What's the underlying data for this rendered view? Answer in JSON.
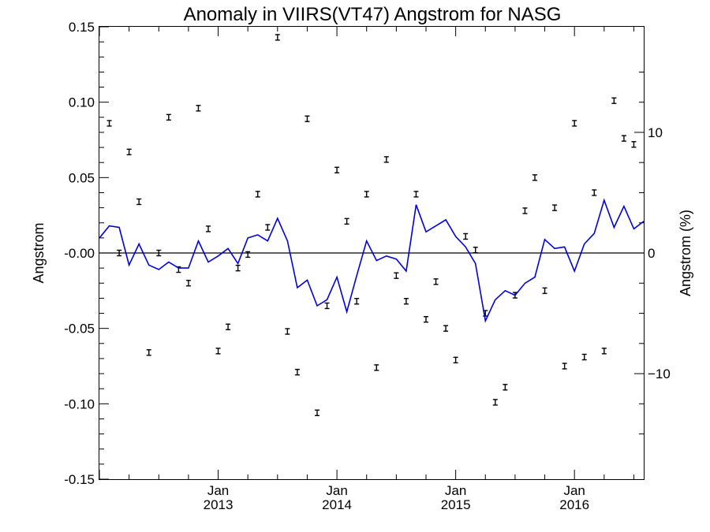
{
  "chart_data": {
    "type": "scatter",
    "title": "Anomaly in VIIRS(VT47) Angstrom for NASG",
    "ylabel": "Angstrom",
    "y2label": "Angstrom (%)",
    "ylim": [
      -0.15,
      0.15
    ],
    "y2lim": [
      -18.75,
      18.75
    ],
    "xlim": [
      "2012-01",
      "2016-08"
    ],
    "y_ticks": [
      "0.15",
      "0.10",
      "0.05",
      "-0.00",
      "-0.05",
      "-0.10",
      "-0.15"
    ],
    "y2_ticks": [
      "10",
      "0",
      "−10"
    ],
    "x_ticks": [
      {
        "month": "Jan",
        "year": "2013",
        "x": "2013-01"
      },
      {
        "month": "Jan",
        "year": "2014",
        "x": "2014-01"
      },
      {
        "month": "Jan",
        "year": "2015",
        "x": "2015-01"
      },
      {
        "month": "Jan",
        "year": "2016",
        "x": "2016-01"
      }
    ],
    "zero_line": true,
    "series": [
      {
        "kind": "errorbar-markers",
        "color": "#000000",
        "x": [
          "2012-02",
          "2012-03",
          "2012-04",
          "2012-05",
          "2012-06",
          "2012-07",
          "2012-08",
          "2012-09",
          "2012-10",
          "2012-11",
          "2012-12",
          "2013-01",
          "2013-02",
          "2013-03",
          "2013-04",
          "2013-05",
          "2013-06",
          "2013-07",
          "2013-08",
          "2013-09",
          "2013-10",
          "2013-11",
          "2013-12",
          "2014-01",
          "2014-02",
          "2014-03",
          "2014-04",
          "2014-05",
          "2014-06",
          "2014-07",
          "2014-08",
          "2014-09",
          "2014-10",
          "2014-11",
          "2014-12",
          "2015-01",
          "2015-02",
          "2015-03",
          "2015-04",
          "2015-05",
          "2015-06",
          "2015-07",
          "2015-08",
          "2015-09",
          "2015-10",
          "2015-11",
          "2015-12",
          "2016-01",
          "2016-02",
          "2016-03",
          "2016-04",
          "2016-05",
          "2016-06",
          "2016-07"
        ],
        "y": [
          0.086,
          0.0,
          0.067,
          0.034,
          -0.066,
          0.0,
          0.09,
          -0.011,
          -0.02,
          0.096,
          0.016,
          -0.065,
          -0.049,
          -0.01,
          -0.001,
          0.039,
          0.017,
          0.143,
          -0.052,
          -0.079,
          0.089,
          -0.106,
          -0.035,
          0.055,
          0.021,
          -0.032,
          0.039,
          -0.076,
          0.062,
          -0.015,
          -0.032,
          0.039,
          -0.044,
          -0.019,
          -0.05,
          -0.071,
          0.011,
          0.002,
          -0.04,
          -0.099,
          -0.089,
          -0.028,
          0.028,
          0.05,
          -0.025,
          0.03,
          -0.075,
          0.086,
          -0.069,
          0.04,
          -0.065,
          0.101,
          0.076,
          0.072
        ]
      },
      {
        "kind": "line",
        "color": "#0000dd",
        "x": [
          "2012-01",
          "2012-02",
          "2012-03",
          "2012-04",
          "2012-05",
          "2012-06",
          "2012-07",
          "2012-08",
          "2012-09",
          "2012-10",
          "2012-11",
          "2012-12",
          "2013-01",
          "2013-02",
          "2013-03",
          "2013-04",
          "2013-05",
          "2013-06",
          "2013-07",
          "2013-08",
          "2013-09",
          "2013-10",
          "2013-11",
          "2013-12",
          "2014-01",
          "2014-02",
          "2014-03",
          "2014-04",
          "2014-05",
          "2014-06",
          "2014-07",
          "2014-08",
          "2014-09",
          "2014-10",
          "2014-11",
          "2014-12",
          "2015-01",
          "2015-02",
          "2015-03",
          "2015-04",
          "2015-05",
          "2015-06",
          "2015-07",
          "2015-08",
          "2015-09",
          "2015-10",
          "2015-11",
          "2015-12",
          "2016-01",
          "2016-02",
          "2016-03",
          "2016-04",
          "2016-05",
          "2016-06",
          "2016-07",
          "2016-08"
        ],
        "y": [
          0.01,
          0.018,
          0.017,
          -0.008,
          0.006,
          -0.008,
          -0.011,
          -0.006,
          -0.01,
          -0.01,
          0.008,
          -0.006,
          -0.002,
          0.003,
          -0.007,
          0.01,
          0.012,
          0.008,
          0.023,
          0.008,
          -0.023,
          -0.018,
          -0.035,
          -0.031,
          -0.016,
          -0.039,
          -0.015,
          0.008,
          -0.005,
          -0.002,
          -0.004,
          -0.012,
          0.032,
          0.014,
          0.018,
          0.022,
          0.011,
          0.004,
          -0.007,
          -0.045,
          -0.031,
          -0.025,
          -0.028,
          -0.02,
          -0.016,
          0.009,
          0.003,
          0.004,
          -0.012,
          0.006,
          0.013,
          0.035,
          0.017,
          0.031,
          0.016,
          0.021
        ]
      }
    ]
  }
}
